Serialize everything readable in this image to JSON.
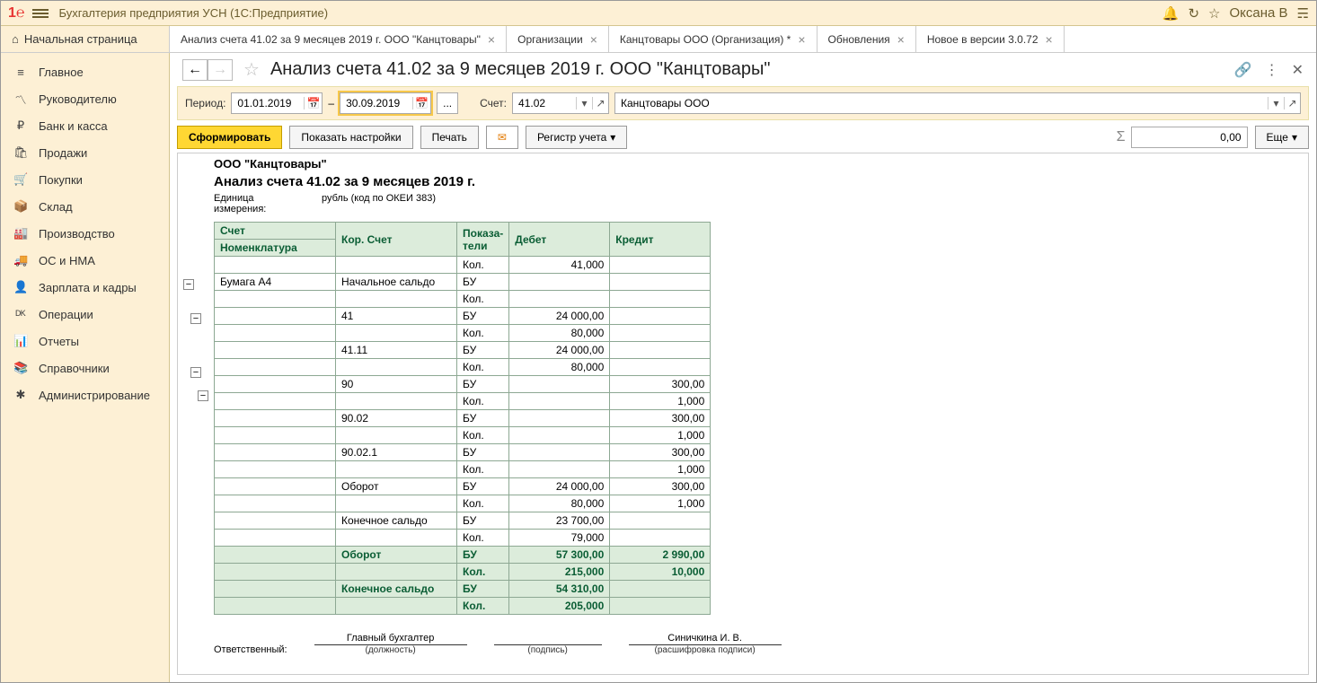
{
  "window_title": "Бухгалтерия предприятия УСН  (1С:Предприятие)",
  "user": "Оксана В",
  "home_tab": "Начальная страница",
  "tabs": [
    "Анализ счета 41.02 за 9 месяцев 2019 г. ООО \"Канцтовары\"",
    "Организации",
    "Канцтовары ООО (Организация) *",
    "Обновления",
    "Новое в версии 3.0.72"
  ],
  "sidebar": [
    {
      "icon": "≡",
      "label": "Главное"
    },
    {
      "icon": "〽",
      "label": "Руководителю"
    },
    {
      "icon": "₽",
      "label": "Банк и касса"
    },
    {
      "icon": "🛍",
      "label": "Продажи"
    },
    {
      "icon": "🛒",
      "label": "Покупки"
    },
    {
      "icon": "📦",
      "label": "Склад"
    },
    {
      "icon": "🏭",
      "label": "Производство"
    },
    {
      "icon": "🚚",
      "label": "ОС и НМА"
    },
    {
      "icon": "👤",
      "label": "Зарплата и кадры"
    },
    {
      "icon": "ᴰᴷ",
      "label": "Операции"
    },
    {
      "icon": "📊",
      "label": "Отчеты"
    },
    {
      "icon": "📚",
      "label": "Справочники"
    },
    {
      "icon": "✱",
      "label": "Администрирование"
    }
  ],
  "page_heading": "Анализ счета 41.02 за 9 месяцев 2019 г. ООО \"Канцтовары\"",
  "params": {
    "period_label": "Период:",
    "date_from": "01.01.2019",
    "date_to": "30.09.2019",
    "dots": "...",
    "account_label": "Счет:",
    "account": "41.02",
    "org": "Канцтовары ООО"
  },
  "toolbar": {
    "generate": "Сформировать",
    "settings": "Показать настройки",
    "print": "Печать",
    "register": "Регистр учета",
    "more": "Еще",
    "sum": "0,00"
  },
  "report": {
    "org": "ООО \"Канцтовары\"",
    "title": "Анализ счета 41.02 за 9 месяцев 2019 г.",
    "unit_label": "Единица измерения:",
    "unit_value": "рубль (код по ОКЕИ 383)",
    "headers": {
      "acc": "Счет",
      "cor": "Кор. Счет",
      "ind": "Показа-тели",
      "deb": "Дебет",
      "cre": "Кредит",
      "nom": "Номенклатура"
    },
    "rows": [
      {
        "cls": "",
        "c": [
          "",
          "",
          "Кол.",
          "41,000",
          ""
        ]
      },
      {
        "cls": "",
        "c": [
          "   Бумага А4",
          "Начальное сальдо",
          "БУ",
          "",
          ""
        ]
      },
      {
        "cls": "",
        "c": [
          "",
          "",
          "Кол.",
          "",
          ""
        ]
      },
      {
        "cls": "",
        "c": [
          "",
          "41",
          "БУ",
          "24 000,00",
          ""
        ]
      },
      {
        "cls": "",
        "c": [
          "",
          "",
          "Кол.",
          "80,000",
          ""
        ]
      },
      {
        "cls": "",
        "c": [
          "",
          "41.11",
          "БУ",
          "24 000,00",
          ""
        ]
      },
      {
        "cls": "",
        "c": [
          "",
          "",
          "Кол.",
          "80,000",
          ""
        ]
      },
      {
        "cls": "",
        "c": [
          "",
          "90",
          "БУ",
          "",
          "300,00"
        ]
      },
      {
        "cls": "",
        "c": [
          "",
          "",
          "Кол.",
          "",
          "1,000"
        ]
      },
      {
        "cls": "",
        "c": [
          "",
          "90.02",
          "БУ",
          "",
          "300,00"
        ]
      },
      {
        "cls": "",
        "c": [
          "",
          "",
          "Кол.",
          "",
          "1,000"
        ]
      },
      {
        "cls": "",
        "c": [
          "",
          "90.02.1",
          "БУ",
          "",
          "300,00"
        ]
      },
      {
        "cls": "",
        "c": [
          "",
          "",
          "Кол.",
          "",
          "1,000"
        ]
      },
      {
        "cls": "",
        "c": [
          "",
          "Оборот",
          "БУ",
          "24 000,00",
          "300,00"
        ]
      },
      {
        "cls": "",
        "c": [
          "",
          "",
          "Кол.",
          "80,000",
          "1,000"
        ]
      },
      {
        "cls": "",
        "c": [
          "",
          "Конечное сальдо",
          "БУ",
          "23 700,00",
          ""
        ]
      },
      {
        "cls": "",
        "c": [
          "",
          "",
          "Кол.",
          "79,000",
          ""
        ]
      },
      {
        "cls": "tot",
        "c": [
          "",
          "Оборот",
          "БУ",
          "57 300,00",
          "2 990,00"
        ]
      },
      {
        "cls": "tot",
        "c": [
          "",
          "",
          "Кол.",
          "215,000",
          "10,000"
        ]
      },
      {
        "cls": "tot",
        "c": [
          "",
          "Конечное сальдо",
          "БУ",
          "54 310,00",
          ""
        ]
      },
      {
        "cls": "tot",
        "c": [
          "",
          "",
          "Кол.",
          "205,000",
          ""
        ]
      }
    ],
    "sign": {
      "resp": "Ответственный:",
      "pos": "Главный бухгалтер",
      "pos_cap": "(должность)",
      "sign_cap": "(подпись)",
      "name": "Синичкина И. В.",
      "name_cap": "(расшифровка подписи)"
    }
  }
}
